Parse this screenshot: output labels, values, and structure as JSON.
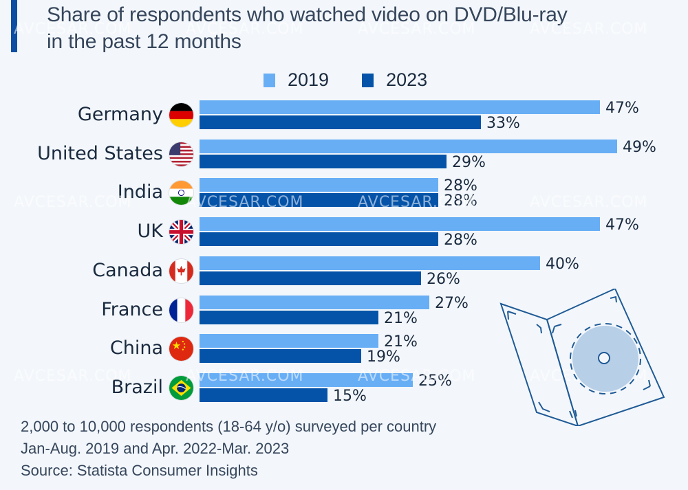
{
  "title_line1": "Share of respondents who watched video on DVD/Blu-ray",
  "title_line2": "in the past 12 months",
  "notes": {
    "line1": "2,000 to 10,000 respondents (18-64 y/o) surveyed per country",
    "line2": "Jan-Aug. 2019 and Apr. 2022-Mar. 2023",
    "source": "Source: Statista Consumer Insights"
  },
  "watermark": "AVCESAR.COM",
  "colors": {
    "series_2019": "#68aef5",
    "series_2023": "#0553a8",
    "accent": "#0b4ea2"
  },
  "chart_data": {
    "type": "bar",
    "orientation": "horizontal",
    "title": "Share of respondents who watched video on DVD/Blu-ray in the past 12 months",
    "xlabel": "",
    "ylabel": "",
    "unit": "%",
    "xlim": [
      0,
      50
    ],
    "grid": false,
    "legend_position": "top-center",
    "categories": [
      "Germany",
      "United States",
      "India",
      "UK",
      "Canada",
      "France",
      "China",
      "Brazil"
    ],
    "flags": [
      "flag-germany-icon",
      "flag-usa-icon",
      "flag-india-icon",
      "flag-uk-icon",
      "flag-canada-icon",
      "flag-france-icon",
      "flag-china-icon",
      "flag-brazil-icon"
    ],
    "series": [
      {
        "name": "2019",
        "values": [
          47,
          49,
          28,
          47,
          40,
          27,
          21,
          25
        ]
      },
      {
        "name": "2023",
        "values": [
          33,
          29,
          28,
          28,
          26,
          21,
          19,
          15
        ]
      }
    ],
    "labels": {
      "2019": [
        "47%",
        "49%",
        "28%",
        "47%",
        "40%",
        "27%",
        "21%",
        "25%"
      ],
      "2023": [
        "33%",
        "29%",
        "28%",
        "28%",
        "26%",
        "21%",
        "19%",
        "15%"
      ]
    }
  }
}
